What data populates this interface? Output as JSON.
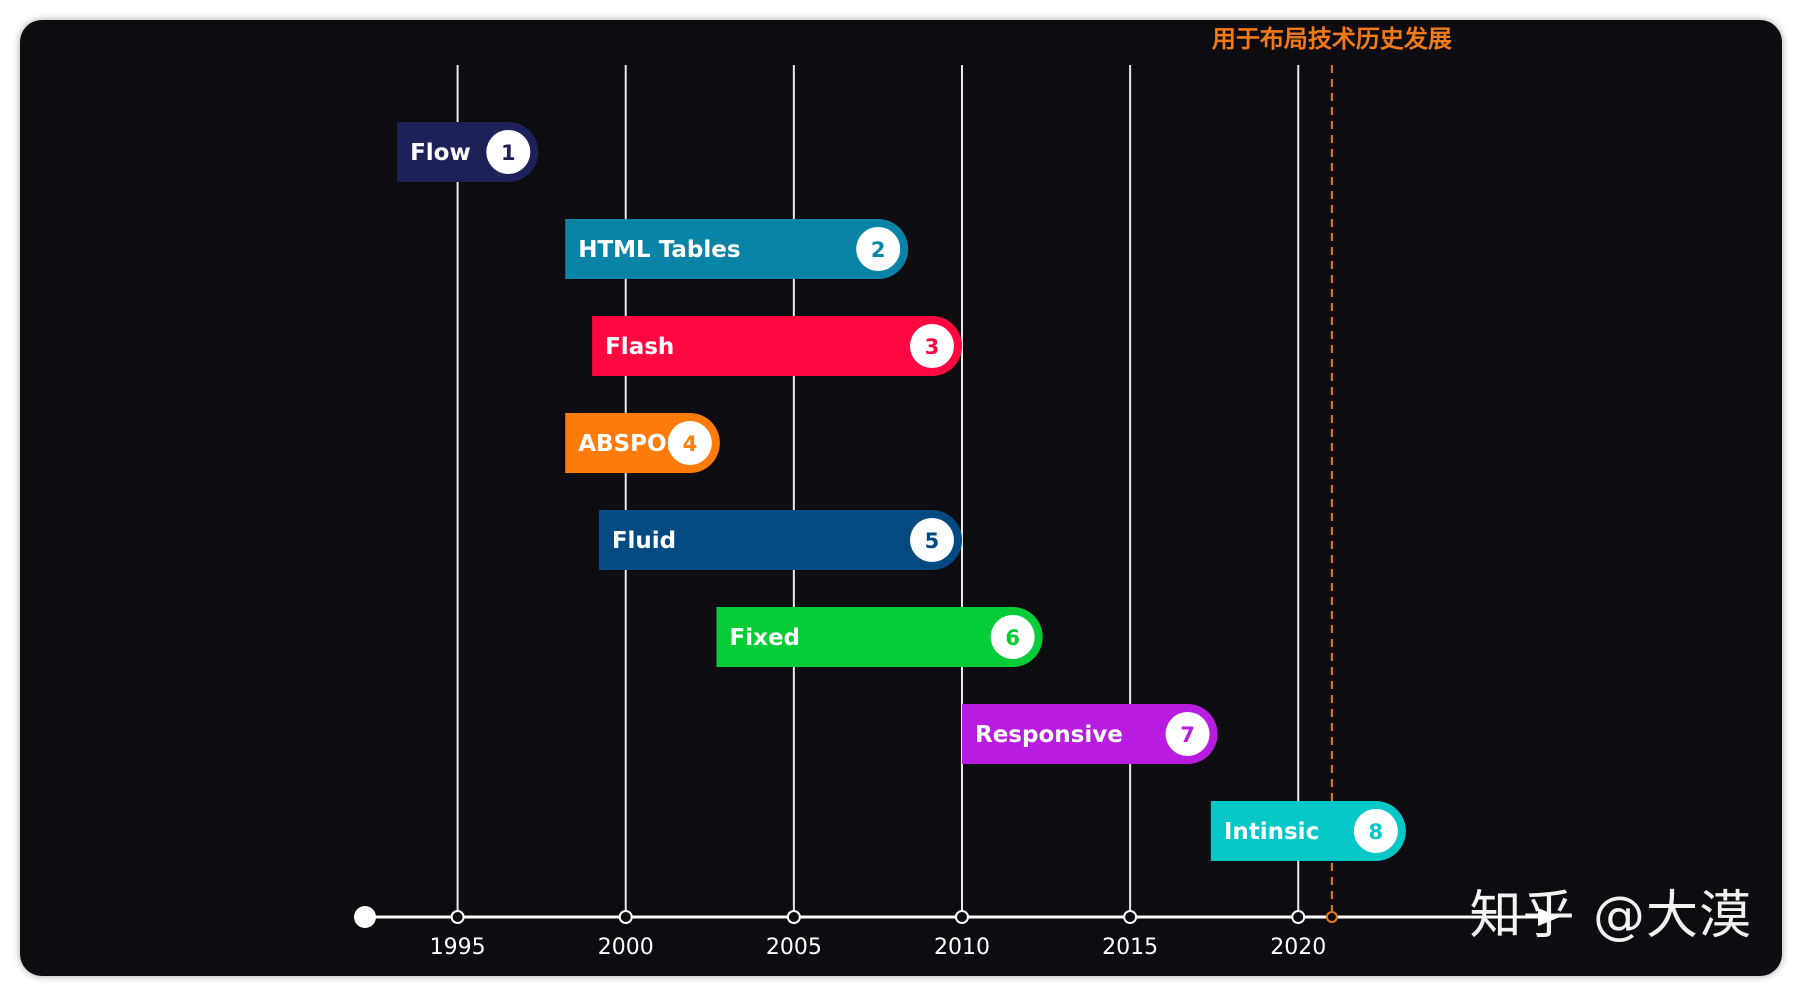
{
  "chart_data": {
    "type": "timeline",
    "title": "",
    "annotation": "用于布局技术历史发展",
    "annotation_year": 2021,
    "xlim": [
      1991.8,
      2026
    ],
    "ticks": [
      1995,
      2000,
      2005,
      2010,
      2015,
      2020
    ],
    "series": [
      {
        "name": "Flow",
        "number": "1",
        "start": 1993.2,
        "end": 1997.4,
        "color": "#1e2159"
      },
      {
        "name": "HTML Tables",
        "number": "2",
        "start": 1998.2,
        "end": 2008.4,
        "color": "#0a84a6"
      },
      {
        "name": "Flash",
        "number": "3",
        "start": 1999.0,
        "end": 2010.0,
        "color": "#ff0740"
      },
      {
        "name": "ABSPOS",
        "number": "4",
        "start": 1998.2,
        "end": 2002.8,
        "color": "#ff7b0a"
      },
      {
        "name": "Fluid",
        "number": "5",
        "start": 1999.2,
        "end": 2010.0,
        "color": "#024b82"
      },
      {
        "name": "Fixed",
        "number": "6",
        "start": 2002.7,
        "end": 2012.4,
        "color": "#06cc37"
      },
      {
        "name": "Responsive",
        "number": "7",
        "start": 2010.0,
        "end": 2017.6,
        "color": "#b81ce0"
      },
      {
        "name": "Intinsic",
        "number": "8",
        "start": 2017.4,
        "end": 2023.2,
        "color": "#06c7c7"
      }
    ]
  },
  "watermark": "知乎 @大漠"
}
